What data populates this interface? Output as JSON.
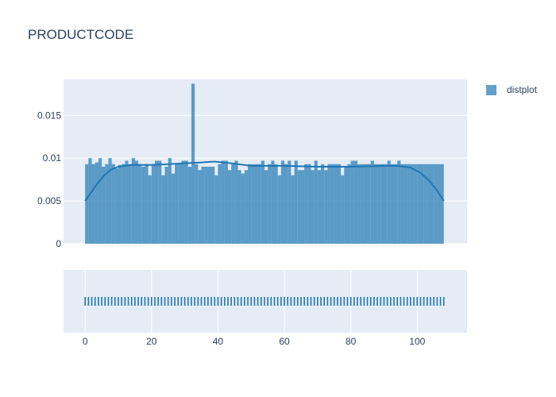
{
  "chart_data": {
    "type": "bar",
    "title": "PRODUCTCODE",
    "legend": {
      "position": "top-right",
      "entries": [
        "distplot"
      ]
    },
    "series_name": "distplot",
    "colors": {
      "bar": "#1f77b4",
      "panel": "#e5ecf6",
      "grid": "#ffffff",
      "text": "#2a3f5f"
    },
    "xlim": [
      -6.5,
      115
    ],
    "ylim": [
      0,
      0.0192
    ],
    "x_ticks": [
      0,
      20,
      40,
      60,
      80,
      100
    ],
    "x_tick_labels": [
      "0",
      "20",
      "40",
      "60",
      "80",
      "100"
    ],
    "y_ticks": [
      0,
      0.005,
      0.01,
      0.015
    ],
    "y_tick_labels": [
      "0",
      "0.005",
      "0.01",
      "0.015"
    ],
    "bins": {
      "start": 0,
      "width": 1
    },
    "histogram_density": [
      0.0093,
      0.01,
      0.0093,
      0.0095,
      0.01,
      0.009,
      0.0093,
      0.01,
      0.0093,
      0.0088,
      0.0092,
      0.0093,
      0.0097,
      0.0093,
      0.01,
      0.0097,
      0.0093,
      0.009,
      0.0093,
      0.008,
      0.0093,
      0.0097,
      0.0097,
      0.008,
      0.009,
      0.01,
      0.0082,
      0.0093,
      0.0093,
      0.0097,
      0.0097,
      0.009,
      0.0187,
      0.0093,
      0.0086,
      0.009,
      0.009,
      0.009,
      0.009,
      0.008,
      0.0093,
      0.0097,
      0.0097,
      0.0086,
      0.0093,
      0.0097,
      0.0086,
      0.0082,
      0.0086,
      0.0093,
      0.0093,
      0.0093,
      0.0093,
      0.0097,
      0.0086,
      0.0093,
      0.0097,
      0.0093,
      0.008,
      0.0097,
      0.0093,
      0.0097,
      0.008,
      0.0097,
      0.0086,
      0.0086,
      0.0093,
      0.0093,
      0.0086,
      0.0097,
      0.0086,
      0.0093,
      0.0086,
      0.0093,
      0.0093,
      0.0093,
      0.0093,
      0.008,
      0.009,
      0.0093,
      0.0097,
      0.0097,
      0.0093,
      0.0093,
      0.0093,
      0.0093,
      0.0097,
      0.0093,
      0.0093,
      0.0093,
      0.0093,
      0.0097,
      0.0093,
      0.0093,
      0.0097,
      0.0093,
      0.0093,
      0.0093,
      0.0093,
      0.0093,
      0.0093,
      0.0093,
      0.0093,
      0.0093,
      0.0093,
      0.0093,
      0.0093,
      0.0093
    ],
    "kde_curve": {
      "x": [
        0,
        2,
        4,
        6,
        8,
        10,
        14,
        20,
        25,
        30,
        35,
        39,
        44,
        50,
        60,
        70,
        80,
        90,
        94,
        98,
        101,
        104,
        106,
        108
      ],
      "y": [
        0.005,
        0.0061,
        0.0072,
        0.0081,
        0.0087,
        0.009,
        0.0092,
        0.0092,
        0.0093,
        0.0094,
        0.0095,
        0.0096,
        0.0094,
        0.0091,
        0.0091,
        0.009,
        0.009,
        0.0091,
        0.0091,
        0.0089,
        0.0083,
        0.0072,
        0.0062,
        0.005
      ]
    },
    "rug": {
      "x": [
        0,
        1,
        2,
        3,
        4,
        5,
        6,
        7,
        8,
        9,
        10,
        11,
        12,
        13,
        14,
        15,
        16,
        17,
        18,
        19,
        20,
        21,
        22,
        23,
        24,
        25,
        26,
        27,
        28,
        29,
        30,
        31,
        32,
        33,
        34,
        35,
        36,
        37,
        38,
        39,
        40,
        41,
        42,
        43,
        44,
        45,
        46,
        47,
        48,
        49,
        50,
        51,
        52,
        53,
        54,
        55,
        56,
        57,
        58,
        59,
        60,
        61,
        62,
        63,
        64,
        65,
        66,
        67,
        68,
        69,
        70,
        71,
        72,
        73,
        74,
        75,
        76,
        77,
        78,
        79,
        80,
        81,
        82,
        83,
        84,
        85,
        86,
        87,
        88,
        89,
        90,
        91,
        92,
        93,
        94,
        95,
        96,
        97,
        98,
        99,
        100,
        101,
        102,
        103,
        104,
        105,
        106,
        107,
        108
      ]
    }
  }
}
